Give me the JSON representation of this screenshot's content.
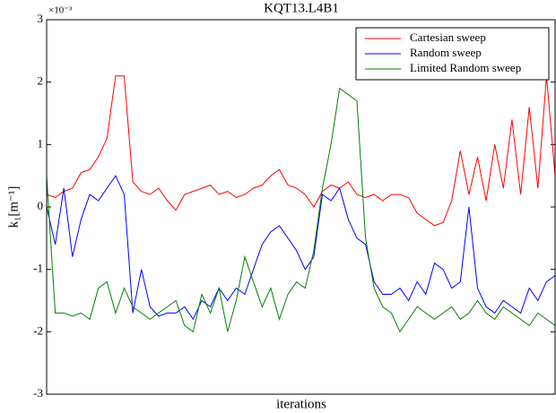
{
  "chart_data": {
    "type": "line",
    "title": "KQT13.L4B1",
    "y_multiplier": "×10⁻³",
    "xlabel": "iterations",
    "ylabel": "k₁[m⁻¹]",
    "ylim": [
      -3,
      3
    ],
    "yticks": [
      -3,
      -2,
      -1,
      0,
      1,
      2,
      3
    ],
    "grid": false,
    "legend": "upper right",
    "series": [
      {
        "name": "Cartesian sweep",
        "color": "#ff0000",
        "values": [
          0.2,
          0.15,
          0.25,
          0.3,
          0.55,
          0.6,
          0.8,
          1.1,
          2.1,
          2.1,
          0.4,
          0.25,
          0.2,
          0.3,
          0.1,
          -0.05,
          0.2,
          0.25,
          0.3,
          0.35,
          0.2,
          0.25,
          0.15,
          0.2,
          0.3,
          0.35,
          0.5,
          0.6,
          0.35,
          0.3,
          0.2,
          0.0,
          0.25,
          0.35,
          0.3,
          0.4,
          0.2,
          0.15,
          0.2,
          0.1,
          0.2,
          0.2,
          0.15,
          -0.1,
          -0.2,
          -0.3,
          -0.25,
          0.1,
          0.9,
          0.2,
          0.8,
          0.1,
          1.0,
          0.3,
          1.4,
          0.2,
          1.6,
          0.3,
          2.1,
          0.5
        ]
      },
      {
        "name": "Random sweep",
        "color": "#0000ff",
        "values": [
          0,
          -0.6,
          0.3,
          -0.8,
          -0.2,
          0.2,
          0.1,
          0.3,
          0.5,
          0.2,
          -1.7,
          -1.0,
          -1.6,
          -1.75,
          -1.7,
          -1.7,
          -1.6,
          -1.8,
          -1.5,
          -1.6,
          -1.3,
          -1.5,
          -1.3,
          -1.4,
          -1.0,
          -0.6,
          -0.4,
          -0.3,
          -0.5,
          -0.7,
          -1.0,
          -0.8,
          0.2,
          0.1,
          0.3,
          -0.2,
          -0.5,
          -0.6,
          -1.2,
          -1.4,
          -1.4,
          -1.3,
          -1.5,
          -1.2,
          -1.4,
          -0.9,
          -1.0,
          -1.3,
          -1.2,
          0.0,
          -1.3,
          -1.6,
          -1.7,
          -1.5,
          -1.6,
          -1.7,
          -1.3,
          -1.5,
          -1.2,
          -1.1
        ]
      },
      {
        "name": "Limited Random sweep",
        "color": "#008000",
        "values": [
          0.5,
          -1.7,
          -1.7,
          -1.75,
          -1.7,
          -1.8,
          -1.3,
          -1.2,
          -1.7,
          -1.3,
          -1.6,
          -1.7,
          -1.8,
          -1.7,
          -1.6,
          -1.5,
          -1.9,
          -2.0,
          -1.4,
          -1.7,
          -1.3,
          -2.0,
          -1.5,
          -0.8,
          -1.2,
          -1.6,
          -1.3,
          -1.8,
          -1.4,
          -1.2,
          -1.3,
          -0.7,
          0.3,
          1.0,
          1.9,
          1.8,
          1.7,
          -0.5,
          -1.3,
          -1.6,
          -1.7,
          -2.0,
          -1.8,
          -1.6,
          -1.7,
          -1.8,
          -1.7,
          -1.6,
          -1.8,
          -1.7,
          -1.5,
          -1.7,
          -1.8,
          -1.6,
          -1.7,
          -1.8,
          -1.9,
          -1.7,
          -1.8,
          -1.9
        ]
      }
    ]
  }
}
